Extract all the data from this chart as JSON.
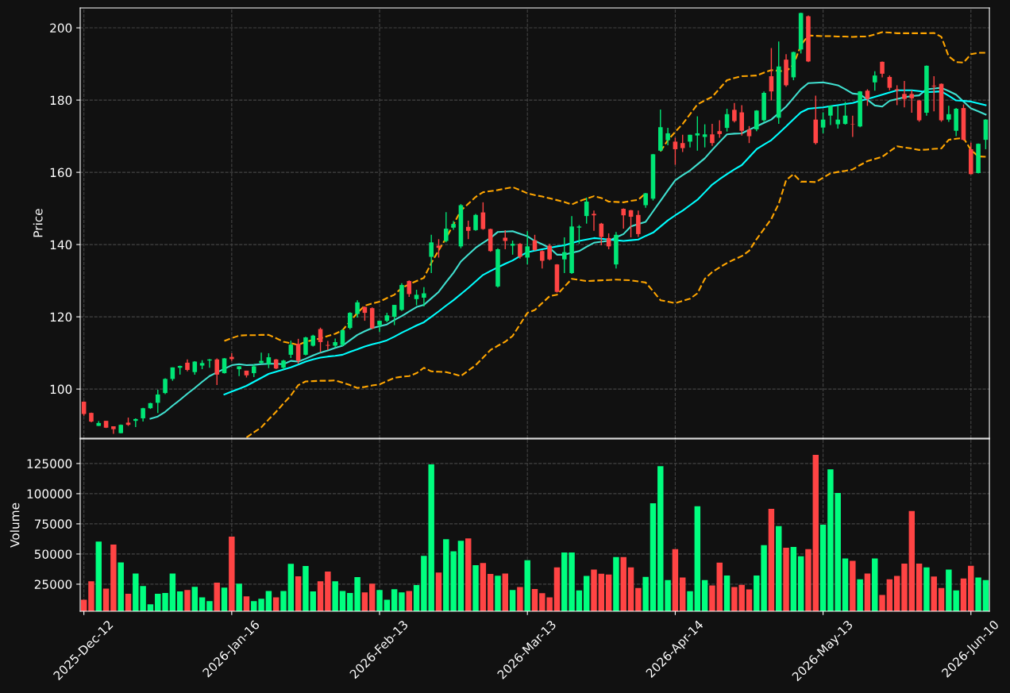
{
  "chart_data": [
    {
      "type": "candlestick",
      "ylabel": "Price",
      "ylim": [
        86.4,
        205.5
      ],
      "yticks": [
        100,
        120,
        140,
        160,
        180,
        200
      ],
      "grid": true,
      "tick_labels": "y",
      "categories": [
        null,
        null,
        null,
        null,
        null,
        null,
        null,
        null,
        null,
        null,
        null,
        null,
        null,
        null,
        null,
        null,
        null,
        null,
        null,
        null,
        null,
        null,
        null,
        null,
        null,
        null,
        null,
        null,
        null,
        null,
        null,
        null,
        null,
        null,
        null,
        null,
        null,
        null,
        null,
        null,
        null,
        null,
        null,
        null,
        null,
        null,
        null,
        null,
        null,
        null,
        null,
        null,
        null,
        null,
        null,
        null,
        null,
        null,
        null,
        null,
        null,
        null,
        null,
        null,
        null,
        null,
        null,
        null,
        null,
        null,
        null,
        null,
        null,
        null,
        null,
        null,
        null,
        null,
        null,
        null,
        null,
        null,
        null,
        null,
        null,
        null,
        null,
        null,
        null,
        null,
        null,
        null,
        null,
        null,
        null,
        null,
        null,
        null,
        null,
        null,
        null,
        null,
        null,
        null,
        null,
        null,
        null,
        null,
        null,
        null,
        null,
        null,
        null,
        null,
        null,
        null,
        null,
        null,
        null,
        null,
        null,
        null,
        null
      ],
      "ohlc": [
        [
          96.5,
          96.6,
          92.6,
          93.1
        ],
        [
          93.4,
          93.5,
          90.8,
          91.0
        ],
        [
          89.8,
          91.1,
          89.8,
          90.6
        ],
        [
          91.2,
          91.2,
          89.2,
          89.3
        ],
        [
          89.7,
          89.7,
          87.6,
          88.9
        ],
        [
          87.8,
          90.2,
          87.7,
          90.1
        ],
        [
          90.7,
          92.1,
          89.8,
          90.1
        ],
        [
          91.2,
          91.9,
          89.5,
          91.7
        ],
        [
          91.9,
          94.8,
          91.0,
          94.7
        ],
        [
          94.7,
          96.2,
          94.5,
          96.1
        ],
        [
          96.2,
          99.8,
          93.4,
          98.5
        ],
        [
          98.9,
          103.0,
          98.6,
          102.8
        ],
        [
          102.8,
          106.0,
          102.3,
          106.0
        ],
        [
          105.9,
          106.5,
          104.0,
          106.4
        ],
        [
          107.3,
          108.2,
          104.9,
          105.3
        ],
        [
          104.7,
          107.7,
          104.0,
          107.6
        ],
        [
          106.5,
          108.0,
          105.5,
          107.2
        ],
        [
          107.9,
          108.3,
          105.9,
          108.2
        ],
        [
          108.2,
          108.5,
          101.1,
          104.0
        ],
        [
          104.4,
          108.6,
          104.3,
          108.5
        ],
        [
          108.9,
          109.9,
          107.8,
          108.3
        ],
        [
          105.5,
          106.3,
          103.6,
          106.3
        ],
        [
          105.1,
          105.1,
          103.2,
          103.8
        ],
        [
          104.4,
          106.9,
          103.3,
          106.3
        ],
        [
          107.2,
          110.1,
          107.0,
          107.8
        ],
        [
          106.9,
          109.9,
          105.8,
          108.8
        ],
        [
          108.2,
          108.3,
          105.5,
          105.7
        ],
        [
          105.9,
          108.1,
          105.4,
          107.9
        ],
        [
          109.5,
          113.4,
          108.6,
          112.3
        ],
        [
          112.5,
          113.9,
          107.0,
          107.8
        ],
        [
          109.5,
          114.5,
          109.3,
          114.3
        ],
        [
          112.0,
          115.0,
          111.8,
          114.8
        ],
        [
          116.6,
          117.0,
          110.2,
          113.0
        ],
        [
          112.2,
          113.3,
          110.8,
          112.0
        ],
        [
          112.0,
          114.0,
          111.5,
          113.0
        ],
        [
          112.2,
          116.6,
          111.9,
          116.3
        ],
        [
          116.9,
          121.3,
          116.5,
          121.1
        ],
        [
          120.8,
          124.6,
          119.8,
          124.0
        ],
        [
          122.7,
          122.9,
          118.9,
          121.1
        ],
        [
          122.4,
          122.6,
          116.6,
          116.8
        ],
        [
          117.7,
          118.9,
          115.8,
          118.9
        ],
        [
          118.9,
          121.1,
          118.5,
          120.4
        ],
        [
          120.0,
          123.3,
          117.7,
          123.3
        ],
        [
          121.9,
          129.3,
          121.6,
          128.8
        ],
        [
          129.9,
          130.1,
          125.5,
          126.3
        ],
        [
          124.9,
          127.5,
          123.2,
          126.1
        ],
        [
          125.3,
          128.2,
          122.9,
          126.5
        ],
        [
          136.6,
          142.7,
          132.1,
          140.6
        ],
        [
          139.7,
          141.5,
          136.4,
          139.1
        ],
        [
          141.0,
          149.0,
          140.6,
          144.4
        ],
        [
          144.7,
          146.5,
          144.1,
          145.7
        ],
        [
          139.5,
          151.2,
          139.0,
          150.9
        ],
        [
          144.9,
          146.6,
          141.5,
          143.8
        ],
        [
          144.0,
          148.5,
          143.8,
          148.2
        ],
        [
          148.9,
          151.7,
          144.1,
          144.3
        ],
        [
          144.3,
          144.4,
          138.0,
          138.2
        ],
        [
          128.4,
          139.0,
          128.1,
          138.7
        ],
        [
          141.9,
          144.0,
          138.7,
          141.0
        ],
        [
          139.7,
          141.1,
          137.2,
          140.2
        ],
        [
          140.2,
          140.4,
          136.1,
          136.6
        ],
        [
          136.4,
          143.7,
          134.5,
          139.5
        ],
        [
          141.2,
          142.7,
          138.3,
          138.5
        ],
        [
          138.2,
          138.4,
          133.4,
          135.5
        ],
        [
          139.7,
          140.2,
          135.6,
          135.9
        ],
        [
          134.5,
          134.6,
          126.7,
          126.9
        ],
        [
          135.9,
          142.0,
          132.1,
          137.9
        ],
        [
          132.1,
          147.9,
          131.9,
          145.0
        ],
        [
          144.7,
          145.4,
          140.2,
          145.0
        ],
        [
          147.9,
          153.0,
          145.8,
          151.9
        ],
        [
          148.5,
          149.4,
          143.8,
          148.1
        ],
        [
          145.8,
          146.0,
          139.8,
          142.1
        ],
        [
          141.8,
          143.1,
          138.7,
          139.5
        ],
        [
          134.5,
          143.5,
          133.4,
          142.7
        ],
        [
          149.9,
          150.0,
          144.4,
          148.1
        ],
        [
          149.5,
          149.6,
          142.0,
          147.7
        ],
        [
          148.2,
          149.4,
          142.1,
          142.9
        ],
        [
          150.9,
          154.3,
          150.2,
          154.2
        ],
        [
          152.7,
          165.1,
          152.2,
          165.0
        ],
        [
          166.0,
          177.4,
          165.8,
          172.5
        ],
        [
          168.9,
          172.3,
          167.5,
          170.8
        ],
        [
          168.5,
          169.6,
          162.1,
          166.4
        ],
        [
          168.1,
          170.4,
          165.6,
          166.7
        ],
        [
          168.5,
          170.4,
          166.9,
          170.4
        ],
        [
          170.2,
          175.5,
          166.0,
          170.8
        ],
        [
          169.8,
          173.3,
          166.9,
          170.5
        ],
        [
          170.5,
          173.4,
          167.3,
          168.1
        ],
        [
          171.4,
          174.4,
          169.6,
          170.6
        ],
        [
          172.3,
          177.6,
          171.3,
          176.1
        ],
        [
          177.3,
          179.2,
          173.8,
          174.2
        ],
        [
          176.6,
          178.6,
          170.2,
          171.5
        ],
        [
          171.8,
          172.8,
          168.1,
          170.0
        ],
        [
          171.9,
          177.2,
          171.4,
          177.1
        ],
        [
          174.4,
          182.4,
          174.0,
          182.0
        ],
        [
          186.6,
          194.4,
          179.9,
          182.4
        ],
        [
          175.1,
          196.2,
          173.4,
          189.3
        ],
        [
          191.2,
          192.7,
          183.7,
          184.1
        ],
        [
          186.3,
          193.4,
          185.5,
          193.3
        ],
        [
          194.0,
          204.2,
          192.9,
          204.1
        ],
        [
          203.2,
          203.4,
          190.5,
          190.7
        ],
        [
          174.6,
          181.2,
          167.7,
          168.1
        ],
        [
          172.4,
          176.6,
          170.8,
          174.6
        ],
        [
          175.7,
          178.5,
          173.1,
          178.4
        ],
        [
          173.3,
          178.4,
          172.1,
          174.6
        ],
        [
          173.4,
          179.5,
          173.2,
          175.7
        ],
        [
          173.4,
          175.7,
          169.8,
          173.3
        ],
        [
          172.7,
          182.5,
          172.5,
          182.4
        ],
        [
          182.6,
          183.0,
          178.4,
          180.3
        ],
        [
          184.9,
          188.0,
          182.6,
          186.8
        ],
        [
          190.6,
          190.7,
          186.3,
          187.3
        ],
        [
          186.4,
          186.8,
          182.7,
          183.4
        ],
        [
          183.0,
          184.1,
          178.6,
          182.7
        ],
        [
          181.7,
          185.3,
          178.0,
          180.3
        ],
        [
          181.7,
          182.7,
          176.5,
          180.5
        ],
        [
          179.9,
          180.0,
          174.0,
          174.4
        ],
        [
          176.5,
          189.6,
          175.7,
          189.5
        ],
        [
          184.0,
          186.6,
          176.9,
          183.8
        ],
        [
          184.5,
          184.6,
          174.0,
          174.4
        ],
        [
          174.6,
          178.4,
          174.0,
          176.1
        ],
        [
          171.5,
          177.8,
          170.0,
          177.6
        ],
        [
          177.8,
          178.8,
          168.8,
          169.0
        ],
        [
          166.4,
          168.2,
          159.4,
          159.5
        ],
        [
          159.8,
          168.0,
          159.7,
          167.9
        ],
        [
          169.0,
          174.7,
          166.4,
          174.6
        ]
      ],
      "colors": [
        "#ff4444",
        "#ff4444",
        "#00e676",
        "#ff4444",
        "#ff4444",
        "#00e676",
        "#ff4444",
        "#00e676",
        "#00e676",
        "#00e676",
        "#00e676",
        "#00e676",
        "#00e676",
        "#00e676",
        "#ff4444",
        "#00e676",
        "#00e676",
        "#00e676",
        "#ff4444",
        "#00e676",
        "#ff4444",
        "#00e676",
        "#ff4444",
        "#00e676",
        "#00e676",
        "#00e676",
        "#ff4444",
        "#00e676",
        "#00e676",
        "#ff4444",
        "#00e676",
        "#00e676",
        "#ff4444",
        "#ff4444",
        "#00e676",
        "#00e676",
        "#00e676",
        "#00e676",
        "#ff4444",
        "#ff4444",
        "#00e676",
        "#00e676",
        "#00e676",
        "#00e676",
        "#ff4444",
        "#00e676",
        "#00e676",
        "#00e676",
        "#ff4444",
        "#00e676",
        "#00e676",
        "#00e676",
        "#ff4444",
        "#00e676",
        "#ff4444",
        "#ff4444",
        "#00e676",
        "#ff4444",
        "#00e676",
        "#ff4444",
        "#00e676",
        "#ff4444",
        "#ff4444",
        "#ff4444",
        "#ff4444",
        "#00e676",
        "#00e676",
        "#00e676",
        "#00e676",
        "#ff4444",
        "#ff4444",
        "#ff4444",
        "#00e676",
        "#ff4444",
        "#ff4444",
        "#ff4444",
        "#00e676",
        "#00e676",
        "#00e676",
        "#00e676",
        "#ff4444",
        "#ff4444",
        "#00e676",
        "#00e676",
        "#00e676",
        "#ff4444",
        "#ff4444",
        "#00e676",
        "#ff4444",
        "#ff4444",
        "#ff4444",
        "#00e676",
        "#00e676",
        "#ff4444",
        "#00e676",
        "#ff4444",
        "#00e676",
        "#00e676",
        "#ff4444",
        "#ff4444",
        "#00e676",
        "#00e676",
        "#00e676",
        "#00e676",
        "#ff4444",
        "#00e676",
        "#ff4444",
        "#00e676",
        "#ff4444",
        "#ff4444",
        "#ff4444",
        "#ff4444",
        "#ff4444",
        "#ff4444",
        "#00e676",
        "#ff4444",
        "#ff4444",
        "#00e676",
        "#00e676",
        "#ff4444",
        "#ff4444",
        "#00e676",
        "#00e676"
      ],
      "series": [
        {
          "type": "line",
          "color": "#40e0d0",
          "line_style": "solid",
          "values": [
            null,
            null,
            null,
            null,
            null,
            null,
            null,
            null,
            null,
            91.8,
            92.4,
            93.7,
            95.4,
            97.0,
            98.7,
            100.3,
            102.0,
            103.6,
            104.6,
            105.6,
            106.6,
            106.9,
            106.6,
            106.7,
            106.9,
            107.0,
            107.0,
            106.9,
            107.8,
            107.6,
            108.4,
            109.3,
            110.1,
            110.7,
            111.4,
            112.0,
            113.5,
            115.0,
            116.0,
            116.9,
            117.4,
            117.9,
            119.1,
            120.2,
            121.5,
            122.7,
            123.3,
            125.1,
            126.9,
            129.6,
            132.2,
            135.3,
            137.2,
            139.1,
            140.5,
            141.8,
            143.5,
            143.6,
            143.7,
            143.0,
            142.3,
            141.0,
            140.1,
            139.1,
            137.2,
            137.2,
            137.7,
            138.2,
            139.4,
            140.5,
            140.8,
            141.0,
            142.0,
            142.9,
            145.0,
            145.7,
            146.3,
            149.2,
            152.1,
            155.0,
            157.8,
            159.2,
            160.5,
            162.2,
            163.9,
            166.2,
            168.4,
            170.5,
            170.7,
            170.8,
            171.8,
            172.7,
            173.7,
            174.6,
            176.4,
            178.2,
            180.6,
            183.0,
            184.7,
            184.8,
            184.9,
            184.5,
            184.1,
            183.0,
            181.8,
            181.6,
            180.1,
            178.5,
            178.2,
            179.8,
            180.3,
            180.8,
            181.1,
            181.3,
            183.0,
            183.2,
            183.4,
            182.5,
            181.5,
            179.6,
            177.7,
            176.9,
            176.0
          ]
        },
        {
          "type": "line",
          "color": "#00ffff",
          "line_style": "solid",
          "values": [
            null,
            null,
            null,
            null,
            null,
            null,
            null,
            null,
            null,
            null,
            null,
            null,
            null,
            null,
            null,
            null,
            null,
            null,
            null,
            98.5,
            99.3,
            100.1,
            100.9,
            102.0,
            103.1,
            104.2,
            104.8,
            105.4,
            106.0,
            106.8,
            107.6,
            108.2,
            108.7,
            109.0,
            109.2,
            109.5,
            110.3,
            111.0,
            111.8,
            112.4,
            112.9,
            113.5,
            114.5,
            115.6,
            116.6,
            117.6,
            118.5,
            120.0,
            121.5,
            123.1,
            124.6,
            126.3,
            128.0,
            129.8,
            131.6,
            132.7,
            133.7,
            134.7,
            135.6,
            136.8,
            137.9,
            138.3,
            138.7,
            139.1,
            139.5,
            139.8,
            140.4,
            141.0,
            141.4,
            141.8,
            141.6,
            141.4,
            141.2,
            141.0,
            141.2,
            141.4,
            142.4,
            143.3,
            145.0,
            146.7,
            148.1,
            149.4,
            150.9,
            152.4,
            154.5,
            156.6,
            158.1,
            159.5,
            160.8,
            162.0,
            164.2,
            166.4,
            167.7,
            168.9,
            170.8,
            172.7,
            174.7,
            176.6,
            177.6,
            177.8,
            178.0,
            178.3,
            178.6,
            178.9,
            179.2,
            179.8,
            180.3,
            180.9,
            181.5,
            182.1,
            182.7,
            182.7,
            182.7,
            182.5,
            182.2,
            182.3,
            182.4,
            181.2,
            179.9,
            179.8,
            179.6,
            179.1,
            178.6
          ]
        },
        {
          "type": "line",
          "color": "#ffa500",
          "line_style": "dashed",
          "values": [
            null,
            null,
            null,
            null,
            null,
            null,
            null,
            null,
            null,
            null,
            null,
            null,
            null,
            null,
            null,
            null,
            null,
            null,
            null,
            113.3,
            114.1,
            114.8,
            114.9,
            114.9,
            115.0,
            115.0,
            114.1,
            113.1,
            112.7,
            112.2,
            113.1,
            113.6,
            114.0,
            114.7,
            115.3,
            116.3,
            118.7,
            121.1,
            123.1,
            123.7,
            124.2,
            125.2,
            126.1,
            128.0,
            129.0,
            129.9,
            130.8,
            134.9,
            138.4,
            141.8,
            145.6,
            149.4,
            151.3,
            153.2,
            154.5,
            154.8,
            155.1,
            155.5,
            155.9,
            155.1,
            154.2,
            153.7,
            153.3,
            152.8,
            152.3,
            151.8,
            151.1,
            152.0,
            152.7,
            153.4,
            152.9,
            151.9,
            151.8,
            151.7,
            152.1,
            152.4,
            154.2,
            null,
            165.8,
            168.9,
            171.2,
            173.4,
            176.1,
            178.8,
            179.9,
            180.9,
            183.2,
            185.5,
            186.1,
            186.6,
            186.7,
            186.8,
            187.6,
            188.3,
            188.1,
            187.9,
            189.8,
            195.2,
            197.9,
            197.8,
            197.7,
            197.7,
            197.6,
            197.6,
            197.5,
            197.6,
            197.6,
            198.2,
            198.8,
            198.7,
            198.5,
            198.5,
            198.5,
            198.5,
            198.5,
            198.6,
            197.5,
            192.1,
            190.5,
            190.4,
            192.7,
            193.1,
            193.1
          ]
        },
        {
          "type": "line",
          "color": "#ffa500",
          "line_style": "dashed",
          "values": [
            null,
            null,
            null,
            null,
            null,
            null,
            null,
            null,
            null,
            null,
            null,
            null,
            null,
            null,
            null,
            null,
            null,
            null,
            null,
            null,
            null,
            null,
            86.6,
            88.0,
            89.4,
            91.6,
            93.7,
            96.0,
            98.2,
            101.1,
            102.1,
            102.2,
            102.3,
            102.3,
            102.4,
            101.8,
            101.1,
            100.3,
            100.6,
            101.0,
            101.3,
            102.2,
            103.1,
            103.4,
            103.6,
            104.4,
            105.9,
            104.9,
            104.8,
            104.7,
            104.2,
            103.6,
            105.1,
            106.6,
            108.7,
            110.8,
            112.0,
            113.1,
            114.7,
            117.9,
            121.1,
            121.9,
            123.8,
            125.7,
            126.1,
            128.3,
            130.5,
            130.2,
            129.9,
            130.0,
            130.1,
            130.2,
            130.3,
            130.2,
            130.1,
            129.8,
            129.5,
            127.1,
            124.6,
            124.2,
            123.8,
            124.4,
            125.0,
            126.5,
            130.5,
            132.4,
            133.7,
            134.9,
            135.9,
            136.8,
            138.3,
            141.5,
            144.3,
            147.1,
            151.3,
            157.8,
            159.5,
            157.4,
            157.4,
            157.3,
            158.5,
            159.7,
            160.1,
            160.4,
            160.8,
            162.0,
            163.1,
            163.7,
            164.3,
            165.8,
            167.2,
            166.9,
            166.6,
            166.2,
            166.3,
            166.5,
            166.6,
            169.0,
            169.3,
            169.5,
            166.2,
            164.4,
            164.3
          ]
        }
      ]
    },
    {
      "type": "bar",
      "ylabel": "Volume",
      "ylim": [
        2600,
        145400
      ],
      "yticks": [
        25000,
        50000,
        75000,
        100000,
        125000
      ],
      "grid": true,
      "categories": [
        "2025-Dec-12",
        null,
        null,
        null,
        null,
        null,
        null,
        null,
        null,
        null,
        null,
        null,
        null,
        null,
        null,
        null,
        null,
        null,
        null,
        null,
        "2026-Jan-16",
        null,
        null,
        null,
        null,
        null,
        null,
        null,
        null,
        null,
        null,
        null,
        null,
        null,
        null,
        null,
        null,
        null,
        null,
        null,
        "2026-Feb-13",
        null,
        null,
        null,
        null,
        null,
        null,
        null,
        null,
        null,
        null,
        null,
        null,
        null,
        null,
        null,
        null,
        null,
        null,
        null,
        "2026-Mar-13",
        null,
        null,
        null,
        null,
        null,
        null,
        null,
        null,
        null,
        null,
        null,
        null,
        null,
        null,
        null,
        null,
        null,
        null,
        null,
        "2026-Apr-14",
        null,
        null,
        null,
        null,
        null,
        null,
        null,
        null,
        null,
        null,
        null,
        null,
        null,
        null,
        null,
        null,
        null,
        null,
        null,
        "2026-May-13",
        null,
        null,
        null,
        null,
        null,
        null,
        null,
        null,
        null,
        null,
        null,
        null,
        null,
        null,
        null,
        null,
        null,
        null,
        null,
        "2026-Jun-10",
        null,
        null
      ],
      "values": [
        12200,
        27400,
        60300,
        21400,
        57800,
        43100,
        17000,
        33900,
        23500,
        8300,
        17000,
        17800,
        33900,
        19000,
        20200,
        22800,
        14100,
        11000,
        26200,
        22100,
        64400,
        25500,
        14900,
        11000,
        12900,
        19400,
        14100,
        19400,
        41900,
        31500,
        40000,
        19000,
        27400,
        35400,
        27400,
        19400,
        17800,
        30800,
        18200,
        25500,
        20200,
        12200,
        20900,
        18200,
        19400,
        24300,
        48400,
        124300,
        34700,
        62200,
        52300,
        61000,
        62900,
        40700,
        42600,
        33500,
        32000,
        33900,
        20200,
        22600,
        44800,
        21000,
        17500,
        14100,
        39000,
        51300,
        51300,
        19900,
        31800,
        37100,
        33700,
        33000,
        47500,
        47500,
        39000,
        21900,
        31000,
        92100,
        122800,
        28400,
        54000,
        30600,
        19200,
        89500,
        28400,
        24000,
        42900,
        32200,
        22600,
        24500,
        20700,
        32200,
        57400,
        87500,
        73100,
        55200,
        55900,
        48200,
        54000,
        132200,
        74300,
        120200,
        100600,
        46300,
        44300,
        29100,
        33900,
        46300,
        16100,
        29100,
        31800,
        42100,
        85600,
        42100,
        39000,
        31300,
        21900,
        37100,
        19900,
        29800,
        40200,
        30600,
        28400
      ],
      "colors": [
        "#ff4444",
        "#ff4444",
        "#00ff7f",
        "#ff4444",
        "#ff4444",
        "#00ff7f",
        "#ff4444",
        "#00ff7f",
        "#00ff7f",
        "#00ff7f",
        "#00ff7f",
        "#00ff7f",
        "#00ff7f",
        "#00ff7f",
        "#ff4444",
        "#00ff7f",
        "#00ff7f",
        "#00ff7f",
        "#ff4444",
        "#00ff7f",
        "#ff4444",
        "#00ff7f",
        "#ff4444",
        "#00ff7f",
        "#00ff7f",
        "#00ff7f",
        "#ff4444",
        "#00ff7f",
        "#00ff7f",
        "#ff4444",
        "#00ff7f",
        "#00ff7f",
        "#ff4444",
        "#ff4444",
        "#00ff7f",
        "#00ff7f",
        "#00ff7f",
        "#00ff7f",
        "#ff4444",
        "#ff4444",
        "#00ff7f",
        "#00ff7f",
        "#00ff7f",
        "#00ff7f",
        "#ff4444",
        "#00ff7f",
        "#00ff7f",
        "#00ff7f",
        "#ff4444",
        "#00ff7f",
        "#00ff7f",
        "#00ff7f",
        "#ff4444",
        "#00ff7f",
        "#ff4444",
        "#ff4444",
        "#00ff7f",
        "#ff4444",
        "#00ff7f",
        "#ff4444",
        "#00ff7f",
        "#ff4444",
        "#ff4444",
        "#ff4444",
        "#ff4444",
        "#00ff7f",
        "#00ff7f",
        "#00ff7f",
        "#00ff7f",
        "#ff4444",
        "#ff4444",
        "#ff4444",
        "#00ff7f",
        "#ff4444",
        "#ff4444",
        "#ff4444",
        "#00ff7f",
        "#00ff7f",
        "#00ff7f",
        "#00ff7f",
        "#ff4444",
        "#ff4444",
        "#00ff7f",
        "#00ff7f",
        "#00ff7f",
        "#ff4444",
        "#ff4444",
        "#00ff7f",
        "#ff4444",
        "#ff4444",
        "#ff4444",
        "#00ff7f",
        "#00ff7f",
        "#ff4444",
        "#00ff7f",
        "#ff4444",
        "#00ff7f",
        "#00ff7f",
        "#ff4444",
        "#ff4444",
        "#00ff7f",
        "#00ff7f",
        "#00ff7f",
        "#00ff7f",
        "#ff4444",
        "#00ff7f",
        "#ff4444",
        "#00ff7f",
        "#ff4444",
        "#ff4444",
        "#ff4444",
        "#ff4444",
        "#ff4444",
        "#ff4444",
        "#00ff7f",
        "#ff4444",
        "#ff4444",
        "#00ff7f",
        "#00ff7f",
        "#ff4444",
        "#ff4444",
        "#00ff7f",
        "#00ff7f"
      ]
    }
  ]
}
